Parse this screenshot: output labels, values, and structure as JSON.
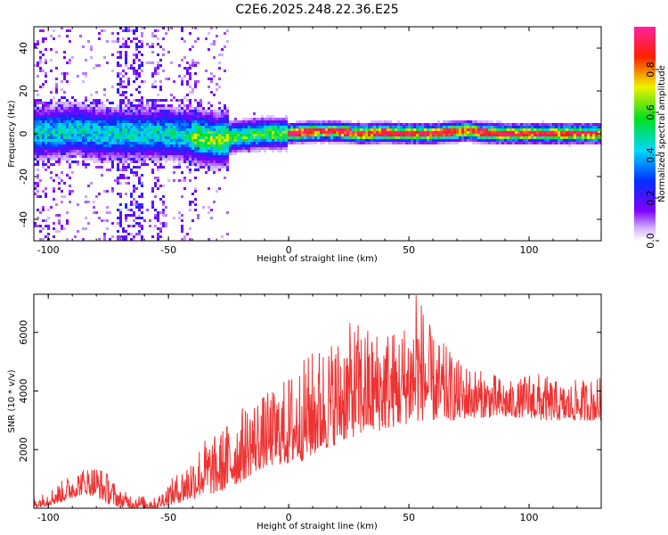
{
  "figure_title": "C2E6.2025.248.22.36.E25",
  "chart_data": [
    {
      "type": "heatmap",
      "name": "spectrogram",
      "xlabel": "Height of straight line (km)",
      "ylabel": "Frequency (Hz)",
      "xlim": [
        -106,
        130
      ],
      "ylim": [
        -50,
        50
      ],
      "x_ticks": [
        -100,
        -50,
        0,
        50,
        100
      ],
      "y_ticks": [
        -40,
        -20,
        0,
        20,
        40
      ],
      "x_tick_labels": [
        "-100",
        "-50",
        "0",
        "50",
        "100"
      ],
      "y_tick_labels": [
        "-40",
        "-20",
        "0",
        "20",
        "40"
      ],
      "colorbar": {
        "label": "Normalized spectral amplitude",
        "range": [
          0,
          1
        ],
        "ticks": [
          0.0,
          0.2,
          0.4,
          0.6,
          0.8
        ],
        "tick_labels": [
          "0.0",
          "0.2",
          "0.4",
          "0.6",
          "0.8"
        ],
        "colormap": "rainbow (white-violet-blue-cyan-green-yellow-red-magenta)"
      },
      "ridge": {
        "description": "Energy concentrated along ~0 Hz; broad scatter for x < -25 km, narrow high-amplitude band for x > 0 km",
        "center_hz": [
          [
            -106,
            0.5
          ],
          [
            -95,
            0.5
          ],
          [
            -88,
            2
          ],
          [
            -80,
            0
          ],
          [
            -70,
            0
          ],
          [
            -60,
            0
          ],
          [
            -50,
            0
          ],
          [
            -40,
            -1
          ],
          [
            -30,
            -3
          ],
          [
            -20,
            -1
          ],
          [
            -10,
            0
          ],
          [
            0,
            0
          ],
          [
            10,
            1
          ],
          [
            20,
            1
          ],
          [
            30,
            0
          ],
          [
            40,
            0.5
          ],
          [
            50,
            0
          ],
          [
            60,
            0
          ],
          [
            70,
            1
          ],
          [
            75,
            1.5
          ],
          [
            80,
            0.5
          ],
          [
            90,
            0
          ],
          [
            100,
            0
          ],
          [
            110,
            0
          ],
          [
            120,
            0
          ],
          [
            130,
            0
          ]
        ]
      }
    },
    {
      "type": "line",
      "name": "snr",
      "xlabel": "Height of straight line (km)",
      "ylabel": "SNR (10 * v/v)",
      "xlim": [
        -106,
        130
      ],
      "ylim": [
        0,
        7300
      ],
      "x_ticks": [
        -100,
        -50,
        0,
        50,
        100
      ],
      "y_ticks": [
        2000,
        4000,
        6000
      ],
      "x_tick_labels": [
        "-100",
        "-50",
        "0",
        "50",
        "100"
      ],
      "y_tick_labels": [
        "2000",
        "4000",
        "6000"
      ],
      "color": "#ee3333",
      "envelope": {
        "x": [
          -106,
          -100,
          -95,
          -90,
          -85,
          -80,
          -75,
          -70,
          -65,
          -60,
          -55,
          -50,
          -45,
          -40,
          -35,
          -30,
          -25,
          -20,
          -15,
          -10,
          -5,
          0,
          5,
          10,
          15,
          20,
          25,
          30,
          35,
          40,
          45,
          50,
          55,
          60,
          65,
          70,
          75,
          80,
          85,
          90,
          95,
          100,
          105,
          110,
          115,
          120,
          125,
          130
        ],
        "low": [
          0,
          100,
          200,
          350,
          500,
          400,
          150,
          50,
          0,
          0,
          0,
          100,
          200,
          300,
          500,
          500,
          700,
          900,
          1200,
          1400,
          1500,
          1500,
          1600,
          1800,
          2000,
          2200,
          2400,
          2500,
          2600,
          2700,
          2800,
          2900,
          3000,
          3000,
          3000,
          3000,
          3100,
          3100,
          3100,
          3100,
          3100,
          3100,
          3000,
          3000,
          3000,
          3000,
          3000,
          3000
        ],
        "high": [
          350,
          600,
          900,
          1200,
          1400,
          1500,
          1200,
          600,
          500,
          400,
          350,
          900,
          1300,
          1900,
          2400,
          2500,
          3000,
          3400,
          3800,
          3900,
          4100,
          4600,
          5000,
          5400,
          5700,
          5900,
          6300,
          6400,
          6100,
          6300,
          6100,
          6600,
          7250,
          5900,
          5600,
          5100,
          4900,
          4700,
          4600,
          4400,
          4300,
          4700,
          4600,
          4400,
          4200,
          4400,
          4400,
          4500
        ]
      },
      "peak": {
        "x": 53,
        "y": 7250
      }
    }
  ]
}
